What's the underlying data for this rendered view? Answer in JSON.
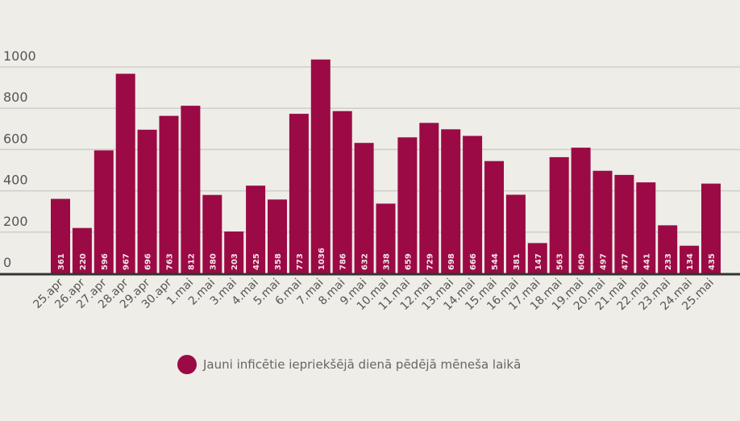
{
  "chart_data": {
    "type": "bar",
    "title": "",
    "xlabel": "",
    "ylabel": "",
    "ylim": [
      0,
      1000
    ],
    "yticks": [
      0,
      200,
      400,
      600,
      800,
      1000
    ],
    "grid": true,
    "categories": [
      "25.apr",
      "26.apr",
      "27.apr",
      "28.apr",
      "29.apr",
      "30.apr",
      "1.mai",
      "2.mai",
      "3.mai",
      "4.mai",
      "5.mai",
      "6.mai",
      "7.mai",
      "8.mai",
      "9.mai",
      "10.mai",
      "11.mai",
      "12.mai",
      "13.mai",
      "14.mai",
      "15.mai",
      "16.mai",
      "17.mai",
      "18.mai",
      "19.mai",
      "20.mai",
      "21.mai",
      "22.mai",
      "23.mai",
      "24.mai",
      "25.mai"
    ],
    "values": [
      361,
      220,
      596,
      967,
      696,
      763,
      812,
      380,
      203,
      425,
      358,
      773,
      1036,
      786,
      632,
      338,
      659,
      729,
      698,
      666,
      544,
      381,
      147,
      563,
      609,
      497,
      477,
      441,
      233,
      134,
      435
    ],
    "legend": {
      "label": "Jauni inficētie iepriekšējā dienā pēdējā mēneša laikā",
      "position": "bottom"
    },
    "colors": {
      "bar": "#9b0a45",
      "label": "#f3e6ea",
      "grid": "#cfcec8",
      "axis": "#333333",
      "tick": "#555555"
    }
  }
}
